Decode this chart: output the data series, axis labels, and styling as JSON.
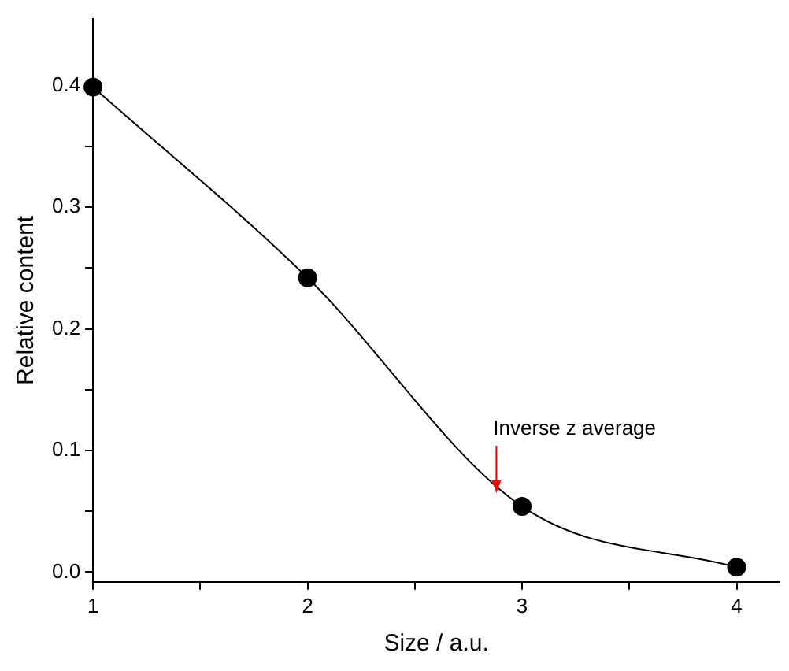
{
  "chart_data": {
    "type": "line",
    "xlabel": "Size / a.u.",
    "ylabel": "Relative content",
    "x": [
      1,
      2,
      3,
      4
    ],
    "series": [
      {
        "color": "#000000",
        "values": [
          0.399,
          0.242,
          0.054,
          0.004
        ]
      }
    ],
    "xlim": [
      1,
      4.2
    ],
    "xticks": [
      1,
      {
        "value": 1.5,
        "label": null
      },
      2,
      {
        "value": 2.5,
        "label": null
      },
      3,
      {
        "value": 3.5,
        "label": null
      },
      4
    ],
    "ylim": [
      -0.008,
      0.455
    ],
    "yticks": [
      {
        "value": 0,
        "label": "0.0"
      },
      {
        "value": 0.05,
        "label": null
      },
      0.1,
      {
        "value": 0.15,
        "label": null
      },
      0.2,
      {
        "value": 0.25,
        "label": null
      },
      0.3,
      {
        "value": 0.35,
        "label": null
      },
      0.4
    ],
    "annotations": [
      {
        "text": "Inverse z average",
        "x": 2.88,
        "y": 0.065
      }
    ],
    "grid": false,
    "legend": false,
    "marker": "circle",
    "line_style": "solid"
  }
}
